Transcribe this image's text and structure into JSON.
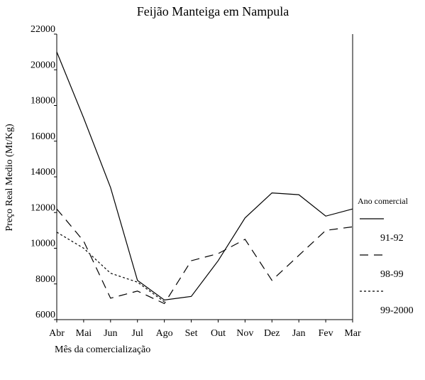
{
  "chart_data": {
    "type": "line",
    "title": "Feijão Manteiga em Nampula",
    "xlabel": "Mês da comercialização",
    "ylabel": "Preço Real Medio (Mt/Kg)",
    "legend_title": "Ano comercial",
    "categories": [
      "Abr",
      "Mai",
      "Jun",
      "Jul",
      "Ago",
      "Set",
      "Out",
      "Nov",
      "Dez",
      "Jan",
      "Fev",
      "Mar"
    ],
    "series": [
      {
        "name": "91-92",
        "color": "#000000",
        "dash": "solid",
        "values": [
          21000,
          17300,
          13400,
          8200,
          7100,
          7300,
          9300,
          11700,
          13100,
          13000,
          11800,
          12200
        ]
      },
      {
        "name": "98-99",
        "color": "#000000",
        "dash": "dashed",
        "values": [
          12200,
          10400,
          7200,
          7600,
          6900,
          9300,
          9700,
          10500,
          8200,
          9600,
          11000,
          11200
        ]
      },
      {
        "name": "99-2000",
        "color": "#000000",
        "dash": "dotted",
        "values": [
          10900,
          10000,
          8600,
          8100,
          7000,
          null,
          null,
          null,
          null,
          null,
          null,
          null
        ]
      }
    ],
    "ylim": [
      6000,
      22000
    ],
    "yticks": [
      6000,
      8000,
      10000,
      12000,
      14000,
      16000,
      18000,
      20000,
      22000
    ],
    "grid": false,
    "legend": "right"
  }
}
